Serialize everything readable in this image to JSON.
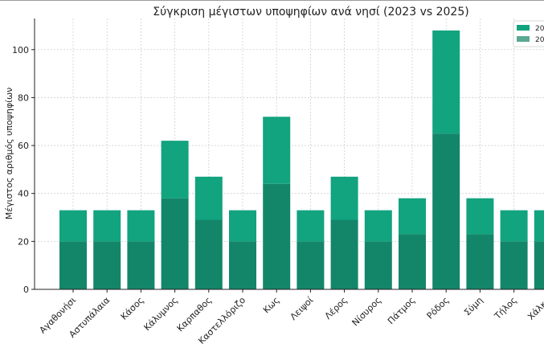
{
  "chart_data": {
    "type": "bar",
    "stacked": true,
    "title": "Σύγκριση μέγιστων υποψηφίων ανά νησί (2023 vs 2025)",
    "xlabel": "",
    "ylabel": "Μέγιστος αριθμός υποψηφίων",
    "ylim": [
      0,
      113
    ],
    "yticks": [
      0,
      20,
      40,
      60,
      80,
      100
    ],
    "grid": true,
    "legend_position": "top-right",
    "categories": [
      "Αγαθονήσι",
      "Αστυπάλαια",
      "Κάσος",
      "Κάλυμνος",
      "Καρπαθος",
      "Καστελλόριζο",
      "Κως",
      "Λειψοί",
      "Λέρος",
      "Νίσυρος",
      "Πάτμος",
      "Ρόδος",
      "Σύμη",
      "Τήλος",
      "Χάλκη"
    ],
    "series": [
      {
        "name": "20",
        "color": "#13866a",
        "values": [
          20,
          20,
          20,
          38,
          29,
          20,
          44,
          20,
          29,
          20,
          23,
          65,
          23,
          20,
          20
        ]
      },
      {
        "name": "20",
        "color": "#12a37f",
        "values": [
          13,
          13,
          13,
          24,
          18,
          13,
          28,
          13,
          18,
          13,
          15,
          43,
          15,
          13,
          13
        ]
      }
    ],
    "legend_swatch_colors": [
      "#12a37f",
      "#5aa893"
    ]
  }
}
